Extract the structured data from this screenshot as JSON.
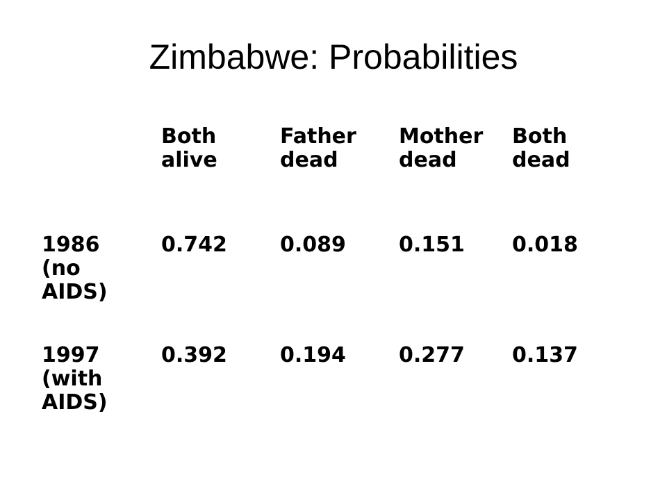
{
  "slide": {
    "title": "Zimbabwe: Probabilities"
  },
  "table": {
    "columns": [
      "Both\nalive",
      "Father\ndead",
      "Mother\ndead",
      "Both\ndead"
    ],
    "rows": [
      {
        "label": "1986\n(no\nAIDS)",
        "values": [
          "0.742",
          "0.089",
          "0.151",
          "0.018"
        ]
      },
      {
        "label": "1997\n(with\nAIDS)",
        "values": [
          "0.392",
          "0.194",
          "0.277",
          "0.137"
        ]
      }
    ]
  }
}
